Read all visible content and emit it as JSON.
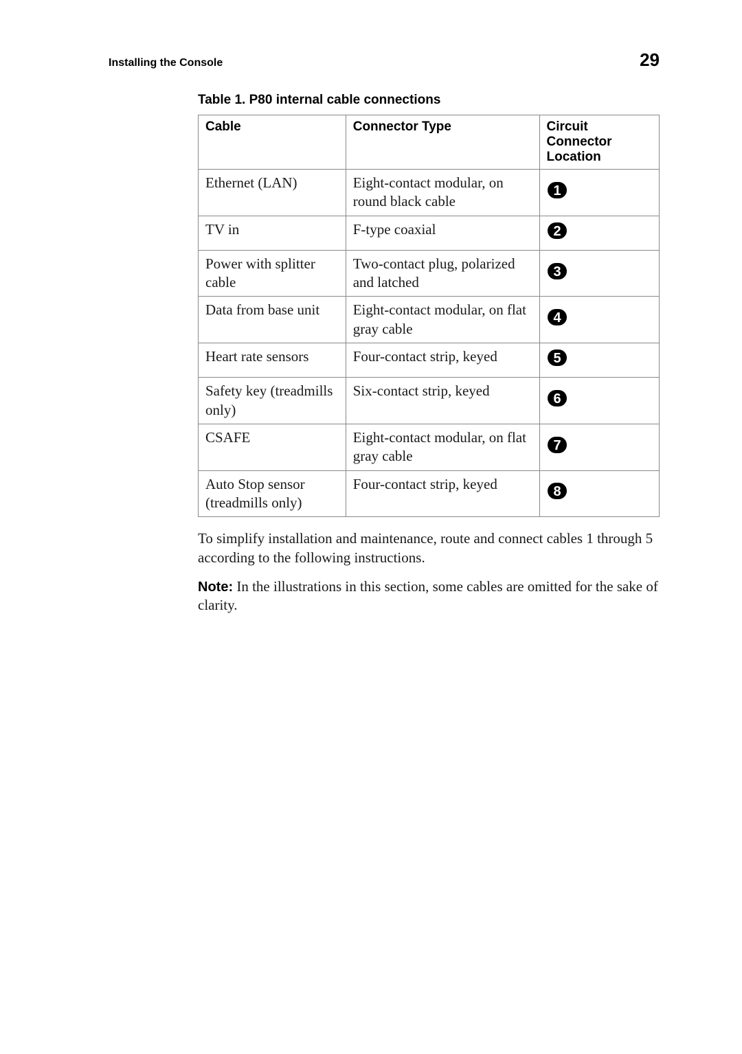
{
  "header": {
    "section_title": "Installing the Console",
    "page_number": "29"
  },
  "table": {
    "caption_prefix": "Table  1.  ",
    "caption_title": "P80 internal cable connections",
    "columns": {
      "cable": "Cable",
      "connector_type": "Connector Type",
      "location": "Circuit Connector Location"
    },
    "rows": [
      {
        "cable": "Ethernet (LAN)",
        "connector": "Eight-contact modular, on round black cable",
        "loc": "1"
      },
      {
        "cable": "TV in",
        "connector": "F-type coaxial",
        "loc": "2"
      },
      {
        "cable": "Power with splitter cable",
        "connector": "Two-contact plug, polarized and latched",
        "loc": "3"
      },
      {
        "cable": "Data from base unit",
        "connector": "Eight-contact modular, on flat gray cable",
        "loc": "4"
      },
      {
        "cable": "Heart rate sensors",
        "connector": "Four-contact strip, keyed",
        "loc": "5"
      },
      {
        "cable": "Safety key (treadmills only)",
        "connector": "Six-contact strip, keyed",
        "loc": "6"
      },
      {
        "cable": "CSAFE",
        "connector": "Eight-contact modular, on flat gray cable",
        "loc": "7"
      },
      {
        "cable": "Auto Stop sensor (treadmills only)",
        "connector": "Four-contact strip, keyed",
        "loc": "8"
      }
    ]
  },
  "body": {
    "para1": "To simplify installation and maintenance, route and connect cables 1 through 5 according to the following instructions.",
    "note_label": "Note:",
    "note_text": " In the illustrations in this section, some cables are omitted for the sake of clarity."
  },
  "style": {
    "badge_fill": "#000000",
    "badge_text": "#ffffff",
    "table_border": "#888888"
  }
}
